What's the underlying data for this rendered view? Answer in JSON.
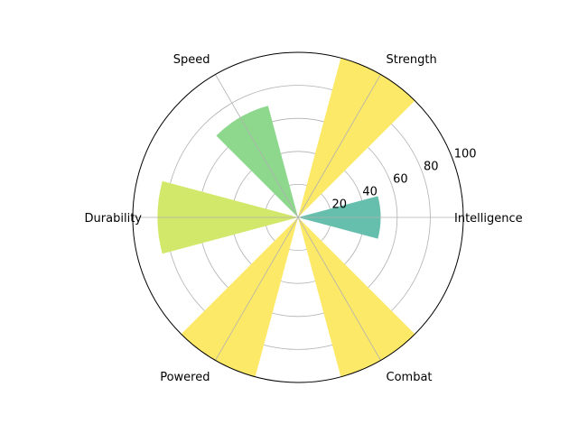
{
  "chart_data": {
    "type": "bar",
    "subtype": "polar",
    "categories": [
      "Intelligence",
      "Strength",
      "Speed",
      "Durability",
      "Powered",
      "Combat"
    ],
    "values": [
      50,
      100,
      70,
      85,
      100,
      100
    ],
    "colors": [
      "#66bfac",
      "#fde968",
      "#8ed88e",
      "#d2e86a",
      "#fde968",
      "#fde968"
    ],
    "rlim": [
      0,
      100
    ],
    "rticks": [
      20,
      40,
      60,
      80,
      100
    ],
    "rtick_labels": [
      "20",
      "40",
      "60",
      "80",
      "100"
    ],
    "grid": true
  }
}
